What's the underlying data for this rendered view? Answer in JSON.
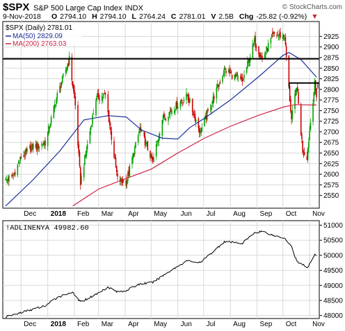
{
  "header": {
    "symbol": "$SPX",
    "name": "S&P 500 Large Cap Index",
    "exchange": "INDX",
    "brand": "© StockCharts.com",
    "date": "9-Nov-2018",
    "o_label": "O",
    "o_value": "2794.10",
    "h_label": "H",
    "h_value": "2794.10",
    "l_label": "L",
    "l_value": "2764.24",
    "c_label": "C",
    "c_value": "2781.01",
    "v_label": "V",
    "v_value": "2.5B",
    "chg_label": "Chg",
    "chg_value": "-25.82 (-0.92%)",
    "chg_arrow": "▼"
  },
  "legend": {
    "main": "$SPX (Daily) 2781.01",
    "ma50": "MA(50) 2829.09",
    "ma200": "MA(200) 2763.03"
  },
  "indicator": {
    "label": "!ADLINENYA 49982.60"
  },
  "colors": {
    "up": "#00a000",
    "down": "#cc0000",
    "ma50": "#1a2e9c",
    "ma200": "#cc2244",
    "grid": "#d8d8d8",
    "hline": "#000000",
    "ad_line": "#000000"
  },
  "chart_data": [
    {
      "type": "candlestick",
      "title": "$SPX S&P 500 Large Cap Index INDX",
      "ylim": [
        2520,
        2960
      ],
      "y_ticks": [
        2550,
        2575,
        2600,
        2625,
        2650,
        2675,
        2700,
        2725,
        2750,
        2775,
        2800,
        2825,
        2850,
        2875,
        2900,
        2925
      ],
      "x_labels": [
        "Dec",
        "2018",
        "Feb",
        "Mar",
        "Apr",
        "May",
        "Jun",
        "Jul",
        "Aug",
        "Sep",
        "Oct",
        "Nov"
      ],
      "x_label_dates": [
        "2017-12-01",
        "2018-01-01",
        "2018-02-01",
        "2018-03-01",
        "2018-04-01",
        "2018-05-01",
        "2018-06-01",
        "2018-07-01",
        "2018-08-01",
        "2018-09-01",
        "2018-10-01",
        "2018-11-01"
      ],
      "x_range": [
        "2017-11-13",
        "2018-11-09"
      ],
      "close_path": [
        {
          "date": "2017-11-13",
          "close": 2585
        },
        {
          "date": "2017-11-22",
          "close": 2597
        },
        {
          "date": "2017-12-01",
          "close": 2640
        },
        {
          "date": "2017-12-13",
          "close": 2663
        },
        {
          "date": "2017-12-29",
          "close": 2674
        },
        {
          "date": "2018-01-12",
          "close": 2786
        },
        {
          "date": "2018-01-26",
          "close": 2872
        },
        {
          "date": "2018-02-02",
          "close": 2762
        },
        {
          "date": "2018-02-08",
          "close": 2581
        },
        {
          "date": "2018-02-26",
          "close": 2779
        },
        {
          "date": "2018-03-09",
          "close": 2786
        },
        {
          "date": "2018-03-23",
          "close": 2588
        },
        {
          "date": "2018-04-02",
          "close": 2581
        },
        {
          "date": "2018-04-18",
          "close": 2708
        },
        {
          "date": "2018-05-03",
          "close": 2629
        },
        {
          "date": "2018-05-14",
          "close": 2730
        },
        {
          "date": "2018-06-12",
          "close": 2786
        },
        {
          "date": "2018-06-27",
          "close": 2699
        },
        {
          "date": "2018-07-25",
          "close": 2846
        },
        {
          "date": "2018-08-15",
          "close": 2818
        },
        {
          "date": "2018-08-29",
          "close": 2914
        },
        {
          "date": "2018-09-07",
          "close": 2871
        },
        {
          "date": "2018-09-20",
          "close": 2930
        },
        {
          "date": "2018-10-03",
          "close": 2925
        },
        {
          "date": "2018-10-11",
          "close": 2728
        },
        {
          "date": "2018-10-17",
          "close": 2809
        },
        {
          "date": "2018-10-24",
          "close": 2656
        },
        {
          "date": "2018-10-29",
          "close": 2641
        },
        {
          "date": "2018-11-02",
          "close": 2723
        },
        {
          "date": "2018-11-07",
          "close": 2813
        },
        {
          "date": "2018-11-09",
          "close": 2781
        }
      ],
      "series": [
        {
          "name": "MA(50)",
          "points": [
            {
              "date": "2017-11-13",
              "value": 2525
            },
            {
              "date": "2017-12-15",
              "value": 2587
            },
            {
              "date": "2018-01-15",
              "value": 2655
            },
            {
              "date": "2018-02-12",
              "value": 2728
            },
            {
              "date": "2018-03-12",
              "value": 2738
            },
            {
              "date": "2018-04-02",
              "value": 2735
            },
            {
              "date": "2018-04-20",
              "value": 2704
            },
            {
              "date": "2018-05-14",
              "value": 2685
            },
            {
              "date": "2018-06-01",
              "value": 2683
            },
            {
              "date": "2018-06-15",
              "value": 2710
            },
            {
              "date": "2018-07-02",
              "value": 2732
            },
            {
              "date": "2018-08-01",
              "value": 2775
            },
            {
              "date": "2018-09-03",
              "value": 2830
            },
            {
              "date": "2018-10-01",
              "value": 2880
            },
            {
              "date": "2018-10-08",
              "value": 2887
            },
            {
              "date": "2018-10-22",
              "value": 2870
            },
            {
              "date": "2018-11-09",
              "value": 2829
            }
          ]
        },
        {
          "name": "MA(200)",
          "points": [
            {
              "date": "2018-01-30",
              "value": 2525
            },
            {
              "date": "2018-03-01",
              "value": 2565
            },
            {
              "date": "2018-04-02",
              "value": 2590
            },
            {
              "date": "2018-05-01",
              "value": 2612
            },
            {
              "date": "2018-06-01",
              "value": 2650
            },
            {
              "date": "2018-07-02",
              "value": 2685
            },
            {
              "date": "2018-08-01",
              "value": 2713
            },
            {
              "date": "2018-09-03",
              "value": 2739
            },
            {
              "date": "2018-10-01",
              "value": 2758
            },
            {
              "date": "2018-10-15",
              "value": 2764
            },
            {
              "date": "2018-11-09",
              "value": 2763
            }
          ]
        }
      ],
      "horizontal_lines": [
        {
          "value": 2872,
          "from": "2017-11-13",
          "to": "2018-11-09"
        },
        {
          "value": 2815,
          "from": "2018-10-08",
          "to": "2018-11-09"
        }
      ]
    },
    {
      "type": "line",
      "title": "!ADLINENYA 49982.60",
      "ylim": [
        47900,
        51150
      ],
      "y_ticks": [
        48000,
        48500,
        49000,
        49500,
        50000,
        50500,
        51000
      ],
      "x_labels": [
        "Dec",
        "2018",
        "Feb",
        "Mar",
        "Apr",
        "May",
        "Jun",
        "Jul",
        "Aug",
        "Sep",
        "Oct",
        "Nov"
      ],
      "series": [
        {
          "name": "!ADLINENYA",
          "points": [
            {
              "date": "2017-11-13",
              "value": 47950
            },
            {
              "date": "2017-12-01",
              "value": 48100
            },
            {
              "date": "2017-12-29",
              "value": 48320
            },
            {
              "date": "2018-01-12",
              "value": 48600
            },
            {
              "date": "2018-01-29",
              "value": 48780
            },
            {
              "date": "2018-02-08",
              "value": 48450
            },
            {
              "date": "2018-02-26",
              "value": 48700
            },
            {
              "date": "2018-03-12",
              "value": 48950
            },
            {
              "date": "2018-03-23",
              "value": 48780
            },
            {
              "date": "2018-04-02",
              "value": 48830
            },
            {
              "date": "2018-04-18",
              "value": 49050
            },
            {
              "date": "2018-05-03",
              "value": 49100
            },
            {
              "date": "2018-05-24",
              "value": 49500
            },
            {
              "date": "2018-06-12",
              "value": 49820
            },
            {
              "date": "2018-06-27",
              "value": 49750
            },
            {
              "date": "2018-07-25",
              "value": 50450
            },
            {
              "date": "2018-08-15",
              "value": 50400
            },
            {
              "date": "2018-08-29",
              "value": 50750
            },
            {
              "date": "2018-09-07",
              "value": 50800
            },
            {
              "date": "2018-09-21",
              "value": 50650
            },
            {
              "date": "2018-10-03",
              "value": 50580
            },
            {
              "date": "2018-10-11",
              "value": 50300
            },
            {
              "date": "2018-10-17",
              "value": 49800
            },
            {
              "date": "2018-10-24",
              "value": 49700
            },
            {
              "date": "2018-10-29",
              "value": 49560
            },
            {
              "date": "2018-11-02",
              "value": 49750
            },
            {
              "date": "2018-11-07",
              "value": 50050
            },
            {
              "date": "2018-11-09",
              "value": 49983
            }
          ]
        }
      ]
    }
  ]
}
